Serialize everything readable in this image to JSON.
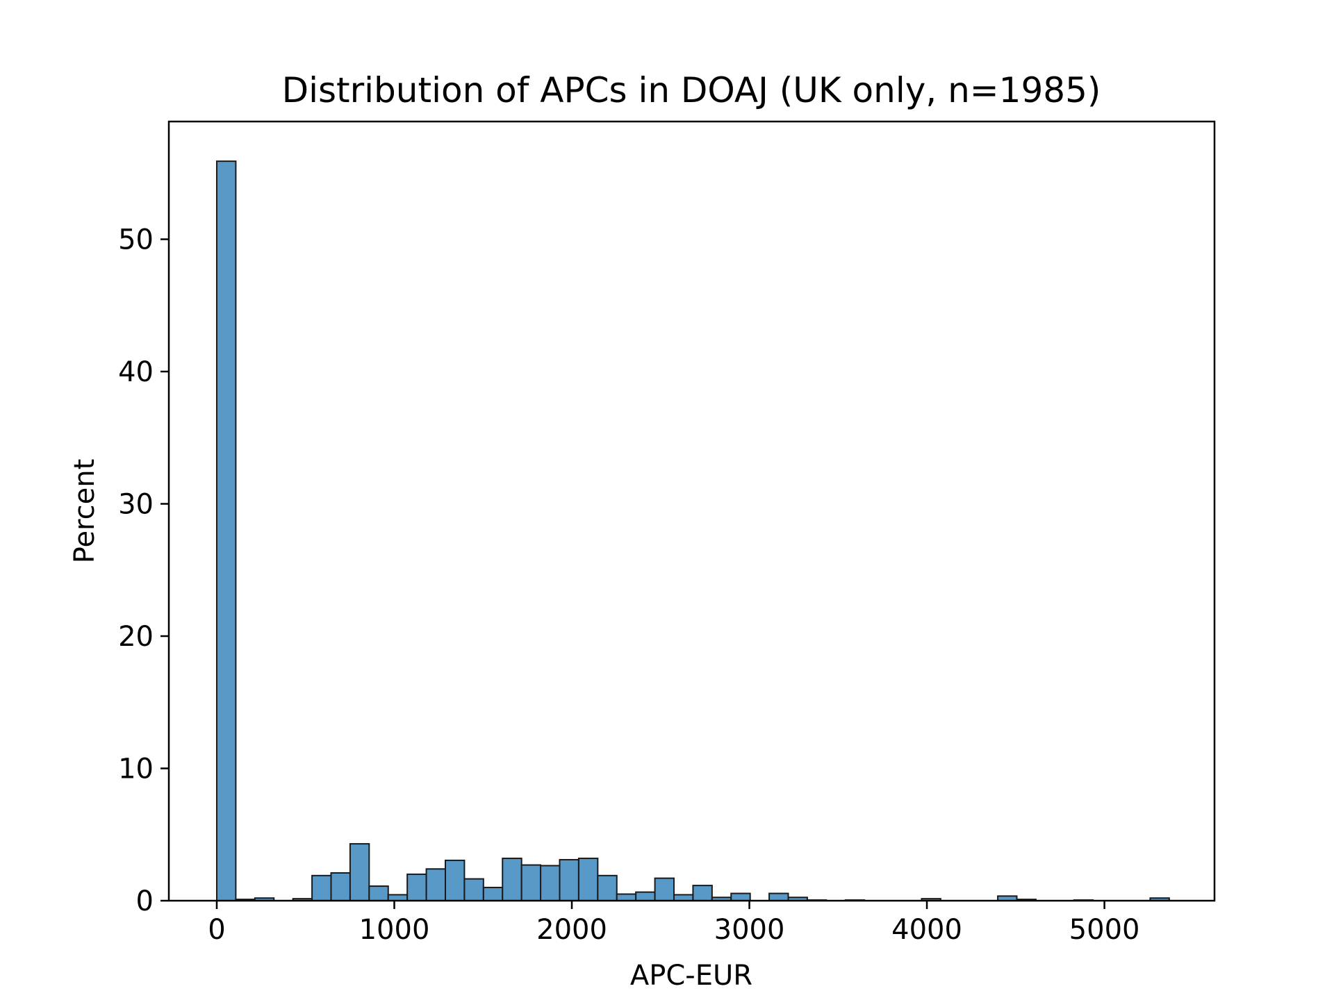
{
  "chart_data": {
    "type": "bar",
    "title": "Distribution of APCs in DOAJ (UK only, n=1985)",
    "xlabel": "APC-EUR",
    "ylabel": "Percent",
    "xlim": [
      -270,
      5620
    ],
    "ylim": [
      0,
      58.9
    ],
    "xticks": [
      0,
      1000,
      2000,
      3000,
      4000,
      5000
    ],
    "yticks": [
      0,
      10,
      20,
      30,
      40,
      50
    ],
    "bin_width": 107.3,
    "bar_color": "#5899c8",
    "edge_color": "#1a1a1a",
    "grid": false,
    "legend": "none",
    "bins": [
      {
        "x0": 0,
        "value": 55.9
      },
      {
        "x0": 107.3,
        "value": 0.1
      },
      {
        "x0": 214.6,
        "value": 0.2
      },
      {
        "x0": 321.9,
        "value": 0.0
      },
      {
        "x0": 429.2,
        "value": 0.15
      },
      {
        "x0": 536.5,
        "value": 1.9
      },
      {
        "x0": 643.8,
        "value": 2.1
      },
      {
        "x0": 751.1,
        "value": 4.3
      },
      {
        "x0": 858.4,
        "value": 1.1
      },
      {
        "x0": 965.7,
        "value": 0.45
      },
      {
        "x0": 1073,
        "value": 2.0
      },
      {
        "x0": 1180.3,
        "value": 2.4
      },
      {
        "x0": 1287.6,
        "value": 3.05
      },
      {
        "x0": 1394.9,
        "value": 1.65
      },
      {
        "x0": 1502.2,
        "value": 1.0
      },
      {
        "x0": 1609.5,
        "value": 3.2
      },
      {
        "x0": 1716.8,
        "value": 2.7
      },
      {
        "x0": 1824.1,
        "value": 2.65
      },
      {
        "x0": 1931.4,
        "value": 3.1
      },
      {
        "x0": 2038.7,
        "value": 3.2
      },
      {
        "x0": 2146,
        "value": 1.9
      },
      {
        "x0": 2253.3,
        "value": 0.5
      },
      {
        "x0": 2360.6,
        "value": 0.65
      },
      {
        "x0": 2467.9,
        "value": 1.7
      },
      {
        "x0": 2575.2,
        "value": 0.45
      },
      {
        "x0": 2682.5,
        "value": 1.15
      },
      {
        "x0": 2789.8,
        "value": 0.25
      },
      {
        "x0": 2897.1,
        "value": 0.55
      },
      {
        "x0": 3004.4,
        "value": 0.0
      },
      {
        "x0": 3111.7,
        "value": 0.55
      },
      {
        "x0": 3219,
        "value": 0.25
      },
      {
        "x0": 3326.3,
        "value": 0.05
      },
      {
        "x0": 3433.6,
        "value": 0.0
      },
      {
        "x0": 3540.9,
        "value": 0.05
      },
      {
        "x0": 3648.2,
        "value": 0.0
      },
      {
        "x0": 3755.5,
        "value": 0.0
      },
      {
        "x0": 3862.8,
        "value": 0.0
      },
      {
        "x0": 3970.1,
        "value": 0.15
      },
      {
        "x0": 4077.4,
        "value": 0.0
      },
      {
        "x0": 4184.7,
        "value": 0.0
      },
      {
        "x0": 4292,
        "value": 0.0
      },
      {
        "x0": 4399.3,
        "value": 0.35
      },
      {
        "x0": 4506.6,
        "value": 0.1
      },
      {
        "x0": 4613.9,
        "value": 0.0
      },
      {
        "x0": 4721.2,
        "value": 0.0
      },
      {
        "x0": 4828.5,
        "value": 0.05
      },
      {
        "x0": 4935.8,
        "value": 0.0
      },
      {
        "x0": 5043.1,
        "value": 0.0
      },
      {
        "x0": 5150.4,
        "value": 0.0
      },
      {
        "x0": 5257.7,
        "value": 0.2
      }
    ]
  }
}
